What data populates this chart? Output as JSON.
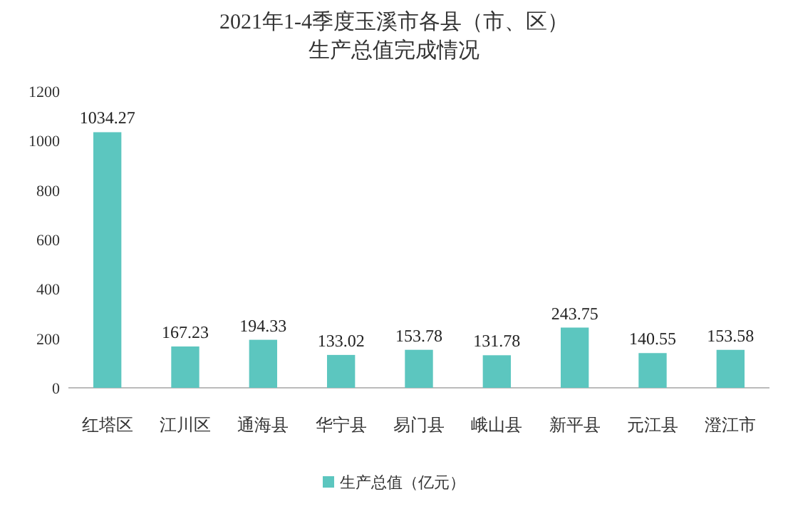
{
  "chart_data": {
    "type": "bar",
    "title": "2021年1-4季度玉溪市各县（市、区）",
    "subtitle": "生产总值完成情况",
    "categories": [
      "红塔区",
      "江川区",
      "通海县",
      "华宁县",
      "易门县",
      "峨山县",
      "新平县",
      "元江县",
      "澄江市"
    ],
    "series": [
      {
        "name": "生产总值（亿元）",
        "color": "#5cc6bf",
        "values": [
          1034.27,
          167.23,
          194.33,
          133.02,
          153.78,
          131.78,
          243.75,
          140.55,
          153.58
        ]
      }
    ],
    "ylim": [
      0,
      1200
    ],
    "yticks": [
      0,
      200,
      400,
      600,
      800,
      1000,
      1200
    ],
    "data_labels": true,
    "legend": "bottom"
  }
}
